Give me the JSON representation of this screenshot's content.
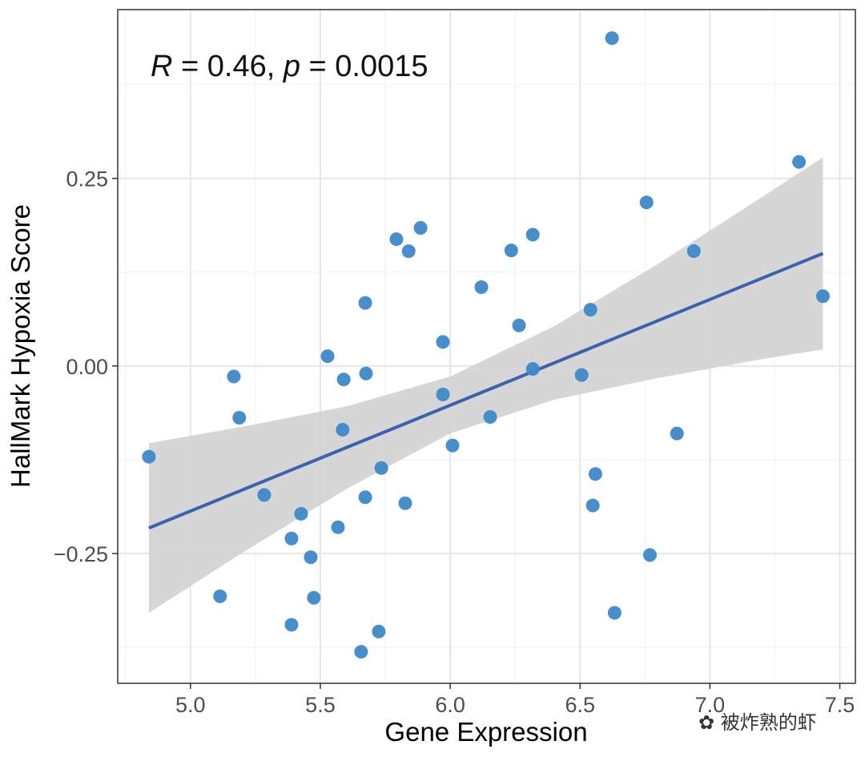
{
  "chart_data": {
    "type": "scatter",
    "xlabel": "Gene Expression",
    "ylabel": "HallMark Hypoxia Score",
    "xlim": [
      4.72,
      7.56
    ],
    "ylim": [
      -0.423,
      0.475
    ],
    "xticks": [
      5.0,
      5.5,
      6.0,
      6.5,
      7.0,
      7.5
    ],
    "xtick_labels": [
      "5.0",
      "5.5",
      "6.0",
      "6.5",
      "7.0",
      "7.5"
    ],
    "yticks": [
      0.25,
      0.0,
      -0.25
    ],
    "ytick_labels": [
      "0.25",
      "0.00",
      "−0.25"
    ],
    "grid": true,
    "annotation": {
      "r_label": "R",
      "r_text": " = 0.46, ",
      "p_label": "p",
      "p_text": " = 0.0015"
    },
    "point_color": "#3d88c9",
    "line_color": "#3b62ae",
    "band_color": "#cfcfcf",
    "points": [
      [
        6.623,
        0.437
      ],
      [
        7.343,
        0.272
      ],
      [
        6.756,
        0.218
      ],
      [
        6.938,
        0.153
      ],
      [
        7.435,
        0.093
      ],
      [
        5.886,
        0.184
      ],
      [
        5.793,
        0.169
      ],
      [
        5.84,
        0.153
      ],
      [
        6.318,
        0.175
      ],
      [
        6.235,
        0.154
      ],
      [
        6.12,
        0.105
      ],
      [
        5.673,
        0.084
      ],
      [
        6.54,
        0.075
      ],
      [
        6.265,
        0.054
      ],
      [
        5.972,
        0.032
      ],
      [
        5.528,
        0.013
      ],
      [
        6.318,
        -0.004
      ],
      [
        6.506,
        -0.012
      ],
      [
        5.676,
        -0.01
      ],
      [
        5.59,
        -0.018
      ],
      [
        5.167,
        -0.014
      ],
      [
        5.972,
        -0.038
      ],
      [
        5.188,
        -0.069
      ],
      [
        6.154,
        -0.068
      ],
      [
        5.586,
        -0.085
      ],
      [
        6.873,
        -0.09
      ],
      [
        6.009,
        -0.106
      ],
      [
        4.84,
        -0.121
      ],
      [
        5.735,
        -0.136
      ],
      [
        6.559,
        -0.144
      ],
      [
        5.284,
        -0.172
      ],
      [
        5.673,
        -0.175
      ],
      [
        5.827,
        -0.183
      ],
      [
        6.549,
        -0.186
      ],
      [
        5.426,
        -0.197
      ],
      [
        5.568,
        -0.215
      ],
      [
        5.389,
        -0.23
      ],
      [
        5.463,
        -0.255
      ],
      [
        6.769,
        -0.252
      ],
      [
        5.114,
        -0.307
      ],
      [
        5.475,
        -0.309
      ],
      [
        6.633,
        -0.329
      ],
      [
        5.389,
        -0.345
      ],
      [
        5.725,
        -0.354
      ],
      [
        5.657,
        -0.381
      ]
    ],
    "fit_line": {
      "x": [
        4.84,
        7.435
      ],
      "y": [
        -0.216,
        0.15
      ]
    },
    "confidence_band": {
      "x": [
        4.84,
        5.2,
        5.6,
        6.0,
        6.4,
        6.8,
        7.2,
        7.435
      ],
      "lower": [
        -0.329,
        -0.249,
        -0.164,
        -0.09,
        -0.045,
        -0.016,
        0.009,
        0.022
      ],
      "upper": [
        -0.103,
        -0.081,
        -0.054,
        -0.014,
        0.053,
        0.136,
        0.225,
        0.278
      ]
    }
  },
  "watermark": "被炸熟的虾"
}
